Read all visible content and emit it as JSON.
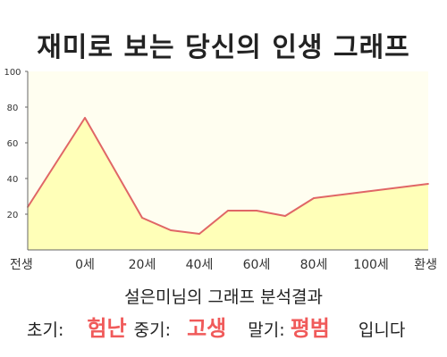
{
  "title": "재미로 보는 당신의 인생 그래프",
  "chart_data": {
    "type": "area",
    "title": "재미로 보는 당신의 인생 그래프",
    "x_categories": [
      "전생",
      "0세",
      "20세",
      "40세",
      "60세",
      "80세",
      "100세",
      "환생"
    ],
    "yticks": [
      "20",
      "40",
      "60",
      "80",
      "100"
    ],
    "ylim": [
      0,
      100
    ],
    "grid": false,
    "colors": {
      "line": "#e06666",
      "fill": "#ffffb8",
      "plot_bg": "#fffef0",
      "axis": "#666666"
    },
    "series": [
      {
        "x": [
          "전생",
          "0세",
          "20세",
          "30세",
          "40세",
          "50세",
          "60세",
          "70세",
          "80세",
          "100세",
          "환생"
        ],
        "values": [
          24,
          74,
          18,
          11,
          9,
          22,
          22,
          19,
          29,
          33,
          37
        ]
      }
    ]
  },
  "result": {
    "title": "설은미님의 그래프 분석결과",
    "early_label": "초기:",
    "early_value": "험난",
    "mid_label": "중기:",
    "mid_value": "고생",
    "late_label": "말기:",
    "late_value": "평범",
    "suffix": "입니다"
  }
}
